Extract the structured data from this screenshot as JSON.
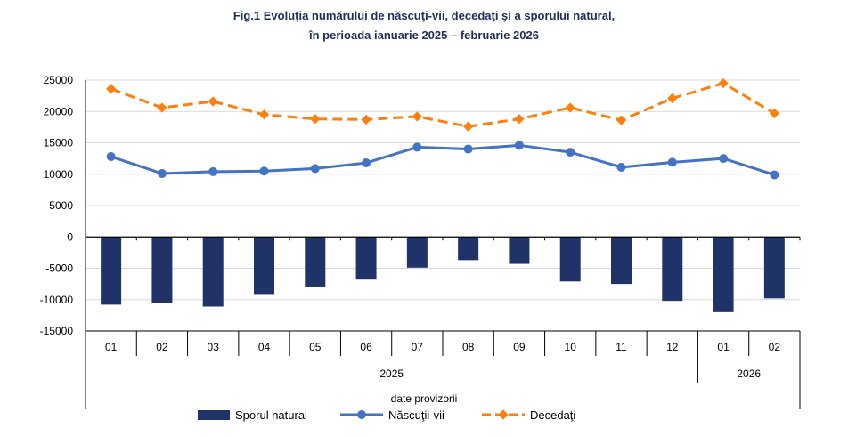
{
  "chart_data": {
    "type": "bar+line",
    "title": "Fig.1 Evoluţia numărului de născuţi-vii, decedaţi şi a sporului natural,",
    "subtitle": "în perioada ianuarie 2025 – februarie 2026",
    "categories": [
      "01",
      "02",
      "03",
      "04",
      "05",
      "06",
      "07",
      "08",
      "09",
      "10",
      "11",
      "12",
      "01",
      "02"
    ],
    "years": [
      {
        "label": "2025",
        "span": 12
      },
      {
        "label": "2026",
        "span": 2
      }
    ],
    "note": "date provizorii",
    "ylim": [
      -15000,
      25000
    ],
    "yticks": [
      -15000,
      -10000,
      -5000,
      0,
      5000,
      10000,
      15000,
      20000,
      25000
    ],
    "grid": true,
    "legend_position": "bottom",
    "series": [
      {
        "name": "Sporul natural",
        "type": "bar",
        "color": "#1f3368",
        "values": [
          -10800,
          -10500,
          -11100,
          -9100,
          -7900,
          -6800,
          -4900,
          -3700,
          -4300,
          -7100,
          -7500,
          -10200,
          -12000,
          -9800
        ]
      },
      {
        "name": "Născuţii-vii",
        "type": "line",
        "color": "#4472c4",
        "values": [
          12800,
          10100,
          10400,
          10500,
          10900,
          11800,
          14300,
          14000,
          14600,
          13500,
          11100,
          11900,
          12500,
          9900
        ]
      },
      {
        "name": "Decedaţi",
        "type": "line",
        "dashed": true,
        "color": "#ff7f0e",
        "values": [
          23600,
          20600,
          21600,
          19500,
          18800,
          18700,
          19200,
          17600,
          18800,
          20600,
          18600,
          22100,
          24500,
          19700
        ]
      }
    ]
  }
}
